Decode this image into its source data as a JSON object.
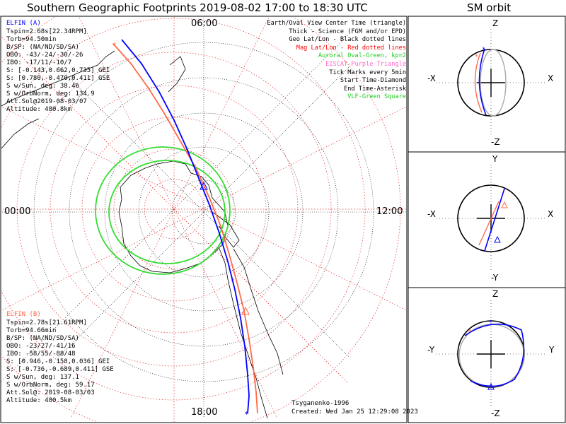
{
  "title": "Southern Geographic Footprints 2019-08-02 17:00 to 18:30 UTC",
  "orbit_title": "SM orbit",
  "hours": {
    "top": "06:00",
    "left": "00:00",
    "right": "12:00",
    "bottom": "18:00"
  },
  "legend": [
    {
      "text": "Earth/Oval View Center Time (triangle)",
      "color": "#000000"
    },
    {
      "text": "Thick - Science (FGM and/or EPD)",
      "color": "#000000"
    },
    {
      "text": "Geo Lat/Lon - Black dotted lines",
      "color": "#000000"
    },
    {
      "text": "Mag Lat/Lon - Red dotted lines",
      "color": "#ff0000"
    },
    {
      "text": "Auroral Oval-Green, kp=2",
      "color": "#22cc22"
    },
    {
      "text": "EISCAT-Purple Triangle",
      "color": "#ff66cc"
    },
    {
      "text": "Tick Marks every 5min",
      "color": "#000000"
    },
    {
      "text": "Start Time-Diamond",
      "color": "#000000"
    },
    {
      "text": "End Time-Asterisk",
      "color": "#000000"
    },
    {
      "text": "VLF-Green Square",
      "color": "#22cc22"
    }
  ],
  "elfin_a": {
    "name": "ELFIN (A)",
    "color": "#0000ff",
    "lines": [
      "Tspin=2.68s[22.34RPM]",
      "Torb=94.50min",
      "B/SP: (NA/ND/SD/SA)",
      "OBO: -43/-24/-30/-26",
      "IBO: -17/11/-10/7",
      "S: [-0.143,0.662,0.735] GEI",
      "S: [0.780,-0.470,0.411] GSE",
      "S w/Sun, deg: 38.46",
      "S w/OrbNorm, deg: 134.9",
      "Att.Sol@2019-08-03/07",
      "Altitude: 480.8km"
    ]
  },
  "elfin_b": {
    "name": "ELFIN (B)",
    "color": "#ff6a4a",
    "lines": [
      "Tspin=2.78s[21.61RPM]",
      "Torb=94.66min",
      "B/SP: (NA/ND/SD/SA)",
      "OBO: -23/27/-41/16",
      "IBO: -58/55/-88/48",
      "S: [0.946,-0.158,0.036] GEI",
      "S: [-0.736,-0.689,0.411] GSE",
      "S w/Sun, deg: 137.1",
      "S w/OrbNorm, deg: 59.17",
      "Att.Sol@: 2019-08-03/03",
      "Altitude: 480.5km"
    ]
  },
  "credit": "Tsyganenko-1996",
  "created": "Created: Wed Jan 25 12:29:08 2023",
  "sm_panels": [
    {
      "top": "Z",
      "bottom": "-Z",
      "left": "-X",
      "right": "X"
    },
    {
      "top": "Y",
      "bottom": "-Y",
      "left": "-X",
      "right": "X"
    },
    {
      "top": "Z",
      "bottom": "-Z",
      "left": "-Y",
      "right": "Y"
    }
  ],
  "colors": {
    "elfin_a": "#0000ff",
    "elfin_b": "#ff6a4a",
    "oval": "#33dd33",
    "mag_grid": "#e03030",
    "geo_grid": "#000000"
  }
}
